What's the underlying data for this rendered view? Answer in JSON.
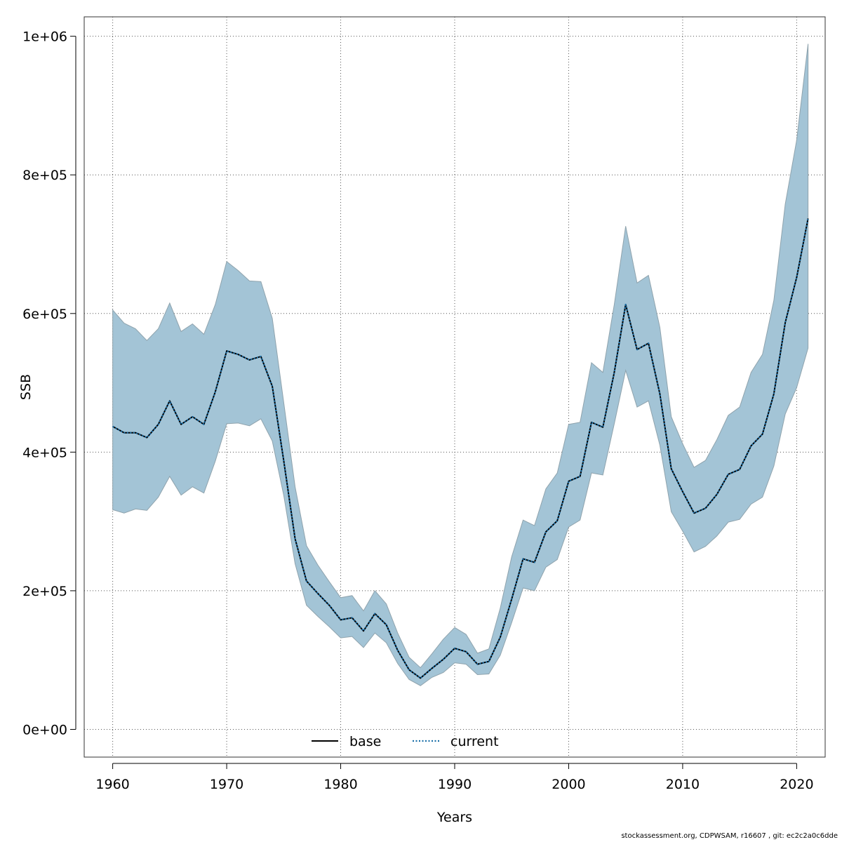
{
  "footer": "stockassessment.org, CDPWSAM, r16607 , git: ec2c2a0c6dde",
  "chart_data": {
    "type": "line",
    "title": "",
    "xlabel": "Years",
    "ylabel": "SSB",
    "xlim": [
      1957.5,
      2022.5
    ],
    "ylim": [
      -40000,
      1028000
    ],
    "x_ticks": [
      1960,
      1970,
      1980,
      1990,
      2000,
      2010,
      2020
    ],
    "x_tick_labels": [
      "1960",
      "1970",
      "1980",
      "1990",
      "2000",
      "2010",
      "2020"
    ],
    "y_ticks": [
      0,
      200000,
      400000,
      600000,
      800000,
      1000000
    ],
    "y_tick_labels": [
      "0e+00",
      "2e+05",
      "4e+05",
      "6e+05",
      "8e+05",
      "1e+06"
    ],
    "grid": true,
    "legend_position": "bottom-center",
    "colors": {
      "band": "#a3c4d6",
      "band_edge": "#8fa3ad",
      "current": "#1b6fa8",
      "base": "#000000"
    },
    "x": [
      1960,
      1961,
      1962,
      1963,
      1964,
      1965,
      1966,
      1967,
      1968,
      1969,
      1970,
      1971,
      1972,
      1973,
      1974,
      1975,
      1976,
      1977,
      1978,
      1979,
      1980,
      1981,
      1982,
      1983,
      1984,
      1985,
      1986,
      1987,
      1988,
      1989,
      1990,
      1991,
      1992,
      1993,
      1994,
      1995,
      1996,
      1997,
      1998,
      1999,
      2000,
      2001,
      2002,
      2003,
      2004,
      2005,
      2006,
      2007,
      2008,
      2009,
      2010,
      2011,
      2012,
      2013,
      2014,
      2015,
      2016,
      2017,
      2018,
      2019,
      2020,
      2021
    ],
    "series": [
      {
        "name": "base",
        "style": "solid",
        "values": [
          437000,
          428000,
          428000,
          421000,
          440000,
          474000,
          440000,
          451000,
          440000,
          487000,
          546000,
          541000,
          533000,
          538000,
          495000,
          388000,
          275000,
          214000,
          196000,
          179000,
          158000,
          161000,
          142000,
          167000,
          151000,
          114000,
          86000,
          74000,
          88000,
          101000,
          117000,
          112000,
          94000,
          98000,
          133000,
          188000,
          246000,
          241000,
          285000,
          301000,
          358000,
          365000,
          443000,
          436000,
          515000,
          613000,
          548000,
          557000,
          484000,
          376000,
          343000,
          312000,
          319000,
          339000,
          368000,
          375000,
          409000,
          426000,
          484000,
          587000,
          652000,
          737000
        ]
      },
      {
        "name": "current",
        "style": "dotted",
        "values": [
          437000,
          428000,
          428000,
          421000,
          440000,
          474000,
          440000,
          451000,
          440000,
          487000,
          546000,
          541000,
          533000,
          538000,
          495000,
          388000,
          275000,
          214000,
          196000,
          179000,
          158000,
          161000,
          142000,
          167000,
          151000,
          114000,
          86000,
          74000,
          88000,
          101000,
          117000,
          112000,
          94000,
          98000,
          133000,
          188000,
          246000,
          241000,
          285000,
          301000,
          358000,
          365000,
          443000,
          436000,
          515000,
          613000,
          548000,
          557000,
          484000,
          376000,
          343000,
          312000,
          319000,
          339000,
          368000,
          375000,
          409000,
          426000,
          484000,
          587000,
          652000,
          737000
        ]
      }
    ],
    "band": {
      "upper": [
        605000,
        586000,
        578000,
        561000,
        578000,
        615000,
        574000,
        585000,
        570000,
        613000,
        675000,
        662000,
        647000,
        646000,
        593000,
        472000,
        350000,
        265000,
        237000,
        213000,
        190000,
        193000,
        171000,
        200000,
        181000,
        139000,
        104000,
        89000,
        109000,
        130000,
        147000,
        137000,
        110000,
        116000,
        175000,
        249000,
        302000,
        294000,
        347000,
        370000,
        440000,
        443000,
        529000,
        515000,
        613000,
        726000,
        644000,
        655000,
        580000,
        451000,
        412000,
        378000,
        388000,
        418000,
        453000,
        465000,
        515000,
        541000,
        619000,
        758000,
        850000,
        989000
      ],
      "lower": [
        317000,
        312000,
        318000,
        316000,
        335000,
        365000,
        338000,
        350000,
        341000,
        387000,
        441000,
        442000,
        438000,
        448000,
        416000,
        338000,
        239000,
        179000,
        163000,
        148000,
        132000,
        134000,
        118000,
        139000,
        125000,
        95000,
        72000,
        63000,
        75000,
        82000,
        96000,
        94000,
        79000,
        80000,
        107000,
        154000,
        204000,
        200000,
        234000,
        245000,
        292000,
        302000,
        370000,
        367000,
        441000,
        518000,
        465000,
        474000,
        410000,
        314000,
        286000,
        256000,
        264000,
        279000,
        299000,
        303000,
        325000,
        335000,
        380000,
        455000,
        493000,
        550000
      ]
    }
  }
}
